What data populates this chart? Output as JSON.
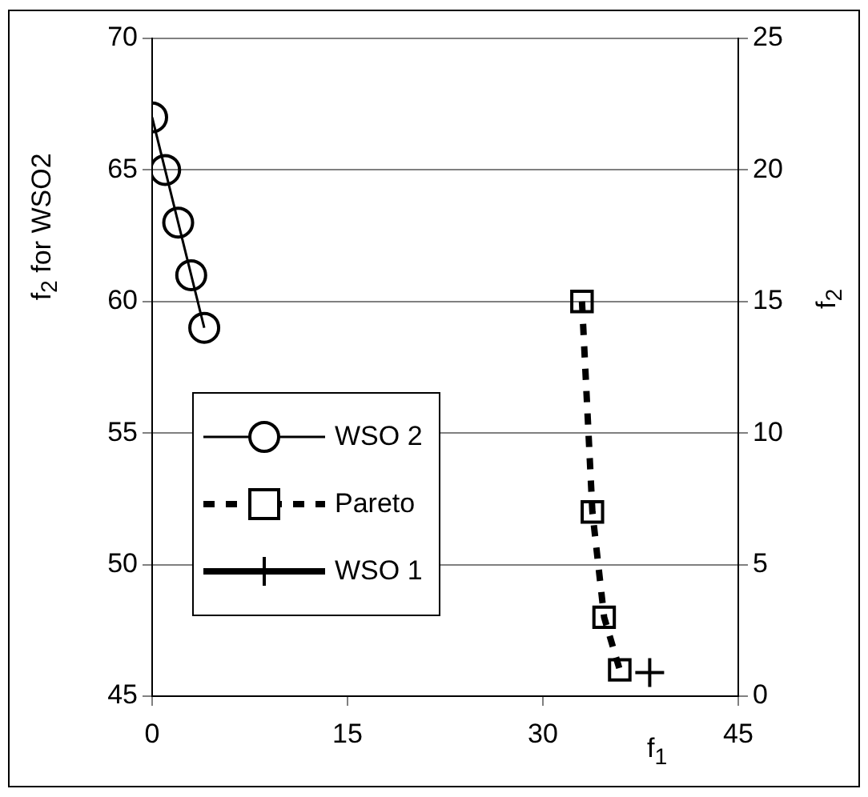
{
  "chart_data": {
    "type": "line",
    "ylabel": "f$_{2}$ for WSO2",
    "y2label": "f$_{2}$",
    "xlabel": "f$_{1}$",
    "xlim": [
      0,
      45
    ],
    "xticks": [
      0,
      15,
      30,
      45
    ],
    "ylim": [
      45,
      70
    ],
    "yticks": [
      45,
      50,
      55,
      60,
      65,
      70
    ],
    "y2lim": [
      0,
      25
    ],
    "y2ticks": [
      0,
      5,
      10,
      15,
      20,
      25
    ],
    "grid": "y",
    "legend": "left",
    "series": [
      {
        "name": "WSO 2",
        "color": "#000000",
        "marker": "circle",
        "line_style": "solid",
        "x": [
          0,
          1,
          2,
          3,
          4
        ],
        "values": [
          67,
          65,
          63,
          61,
          59
        ]
      },
      {
        "name": "Pareto",
        "color": "#000000",
        "marker": "square",
        "line_style": "dashed",
        "axis": "y2",
        "x": [
          33,
          33.8,
          34.7,
          35.9
        ],
        "values": [
          15,
          7,
          3,
          1
        ]
      },
      {
        "name": "WSO 1",
        "color": "#000000",
        "marker": "cross",
        "line_style": "solid",
        "axis": "y2",
        "x": [
          38.2
        ],
        "values": [
          0.9
        ]
      }
    ]
  }
}
